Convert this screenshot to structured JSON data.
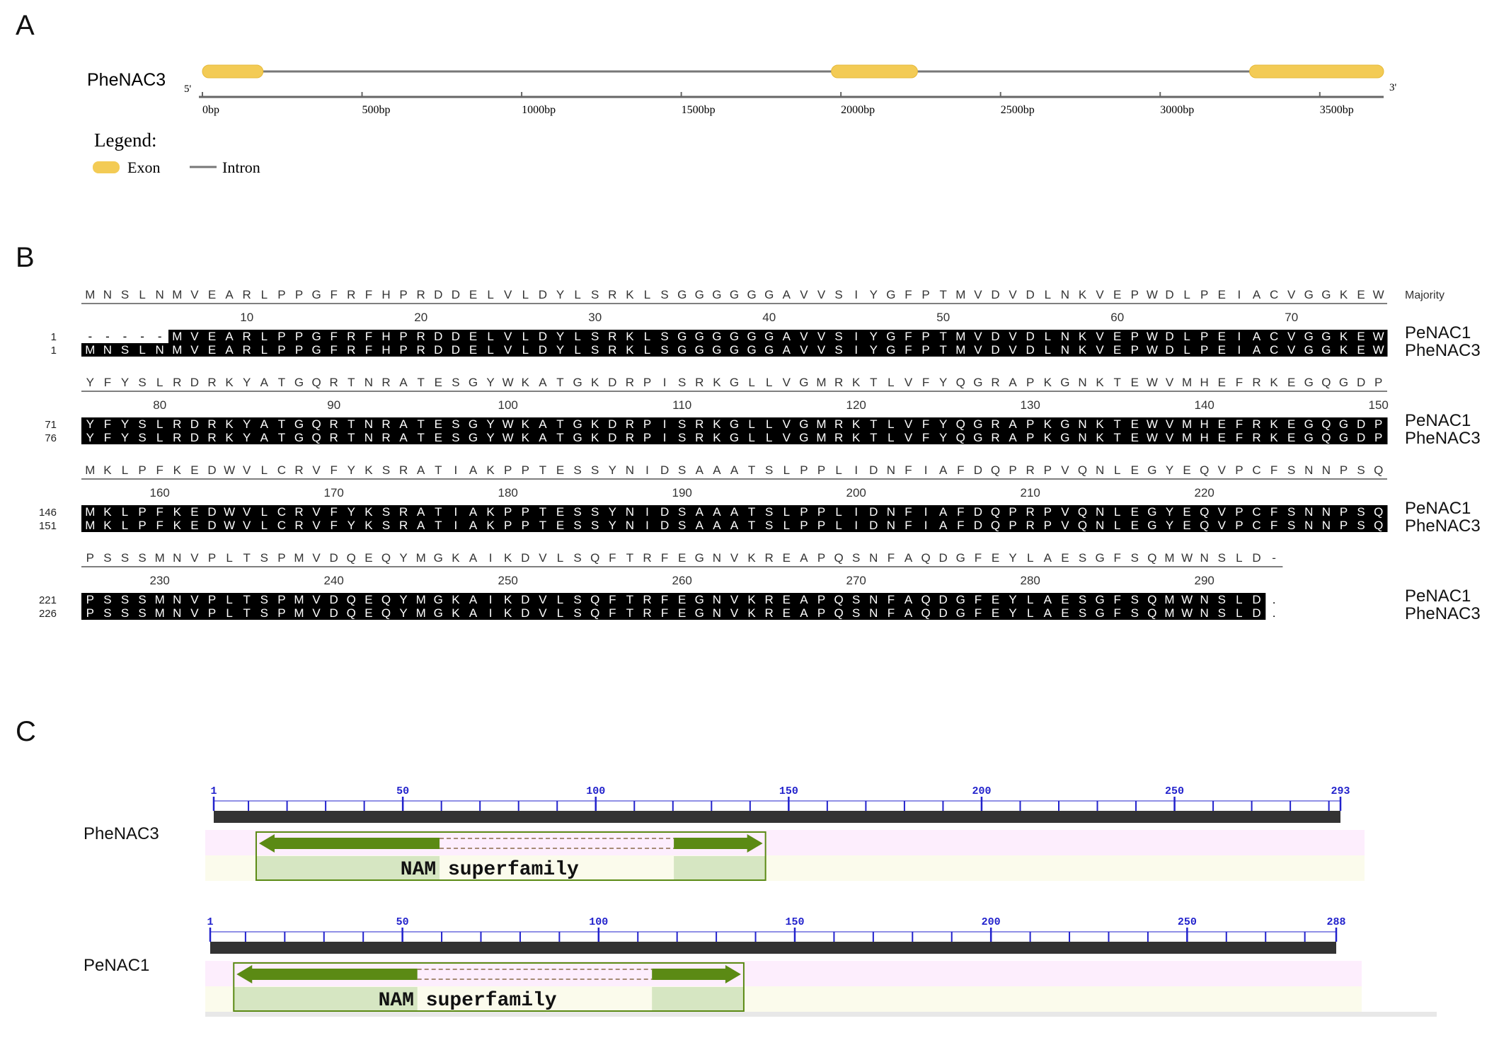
{
  "panels": {
    "a": "A",
    "b": "B",
    "c": "C"
  },
  "panel_a": {
    "gene_name": "PheNAC3",
    "five_prime": "5'",
    "three_prime": "3'",
    "axis_max_bp": 3700,
    "ticks": [
      {
        "bp": 0,
        "label": "0bp"
      },
      {
        "bp": 500,
        "label": "500bp"
      },
      {
        "bp": 1000,
        "label": "1000bp"
      },
      {
        "bp": 1500,
        "label": "1500bp"
      },
      {
        "bp": 2000,
        "label": "2000bp"
      },
      {
        "bp": 2500,
        "label": "2500bp"
      },
      {
        "bp": 3000,
        "label": "3000bp"
      },
      {
        "bp": 3500,
        "label": "3500bp"
      }
    ],
    "exons": [
      {
        "start": 0,
        "end": 190
      },
      {
        "start": 1970,
        "end": 2240
      },
      {
        "start": 3280,
        "end": 3700
      }
    ],
    "legend_title": "Legend:",
    "legend_exon": "Exon",
    "legend_intron": "Intron",
    "colors": {
      "exon": "#f3cb55",
      "intron": "#777777"
    }
  },
  "panel_b": {
    "majority_label": "Majority",
    "seq_names": [
      "PeNAC1",
      "PheNAC3"
    ],
    "blocks": [
      {
        "majority": "MNSLNMVEARLPPGFRFHPRDDELVLDYLSRKLSGGGGGGAVVSIYGFPTMVDVDLNKVEPWDLPEIACVGGKEW",
        "nums": [
          "10",
          "20",
          "30",
          "40",
          "50",
          "60",
          "70"
        ],
        "starts": [
          "1",
          "1"
        ],
        "seqs": [
          "-----MVEARLPPGFRFHPRDDELVLDYLSRKLSGGGGGGAVVSIYGFPTMVDVDLNKVEPWDLPEIACVGGKEW",
          "MNSLNMVEARLPPGFRFHPRDDELVLDYLSRKLSGGGGGGAVVSIYGFPTMVDVDLNKVEPWDLPEIACVGGKEW"
        ]
      },
      {
        "majority": "YFYSLRDRKYATGQRTNRATESGYWKATGKDRPISRKGLLVGMRKTLVFYQGRAPKGNKTEWVMHEFRKEGQGDP",
        "nums": [
          "80",
          "90",
          "100",
          "110",
          "120",
          "130",
          "140",
          "150"
        ],
        "starts": [
          "71",
          "76"
        ],
        "seqs": [
          "YFYSLRDRKYATGQRTNRATESGYWKATGKDRPISRKGLLVGMRKTLVFYQGRAPKGNKTEWVMHEFRKEGQGDP",
          "YFYSLRDRKYATGQRTNRATESGYWKATGKDRPISRKGLLVGMRKTLVFYQGRAPKGNKTEWVMHEFRKEGQGDP"
        ]
      },
      {
        "majority": "MKLPFKEDWVLCRVFYKSRATIAKPPTESSYNIDSAAATSLPPLIDNFIAFDQPRPVQNLEGYEQVPCFSNNPSQ",
        "nums": [
          "160",
          "170",
          "180",
          "190",
          "200",
          "210",
          "220"
        ],
        "starts": [
          "146",
          "151"
        ],
        "seqs": [
          "MKLPFKEDWVLCRVFYKSRATIAKPPTESSYNIDSAAATSLPPLIDNFIAFDQPRPVQNLEGYEQVPCFSNNPSQ",
          "MKLPFKEDWVLCRVFYKSRATIAKPPTESSYNIDSAAATSLPPLIDNFIAFDQPRPVQNLEGYEQVPCFSNNPSQ"
        ]
      },
      {
        "majority": "PSSSMNVPLTSPMVDQEQYMGKAIKDVLSQFTRFEGNVKREAPQSNFAQDGFEYLAESGFSQMWNSLD-",
        "nums": [
          "230",
          "240",
          "250",
          "260",
          "270",
          "280",
          "290"
        ],
        "starts": [
          "221",
          "226"
        ],
        "seqs": [
          "PSSSMNVPLTSPMVDQEQYMGKAIKDVLSQFTRFEGNVKREAPQSNFAQDGFEYLAESGFSQMWNSLD.",
          "PSSSMNVPLTSPMVDQEQYMGKAIKDVLSQFTRFEGNVKREAPQSNFAQDGFEYLAESGFSQMWNSLD."
        ]
      }
    ]
  },
  "panel_c": {
    "tracks": [
      {
        "name": "PheNAC3",
        "length": 293,
        "ticks": [
          "1",
          "50",
          "100",
          "150",
          "200",
          "250",
          "293"
        ],
        "domain_label": "NAM superfamily",
        "domain_start": 12,
        "domain_end": 144
      },
      {
        "name": "PeNAC1",
        "length": 288,
        "ticks": [
          "1",
          "50",
          "100",
          "150",
          "200",
          "250",
          "288"
        ],
        "domain_label": "NAM superfamily",
        "domain_start": 7,
        "domain_end": 137
      }
    ],
    "colors": {
      "domain": "#5b8a14",
      "domain_fill": "#d6e6c2",
      "ruler": "#333333",
      "tick_text": "#2222cc"
    }
  }
}
